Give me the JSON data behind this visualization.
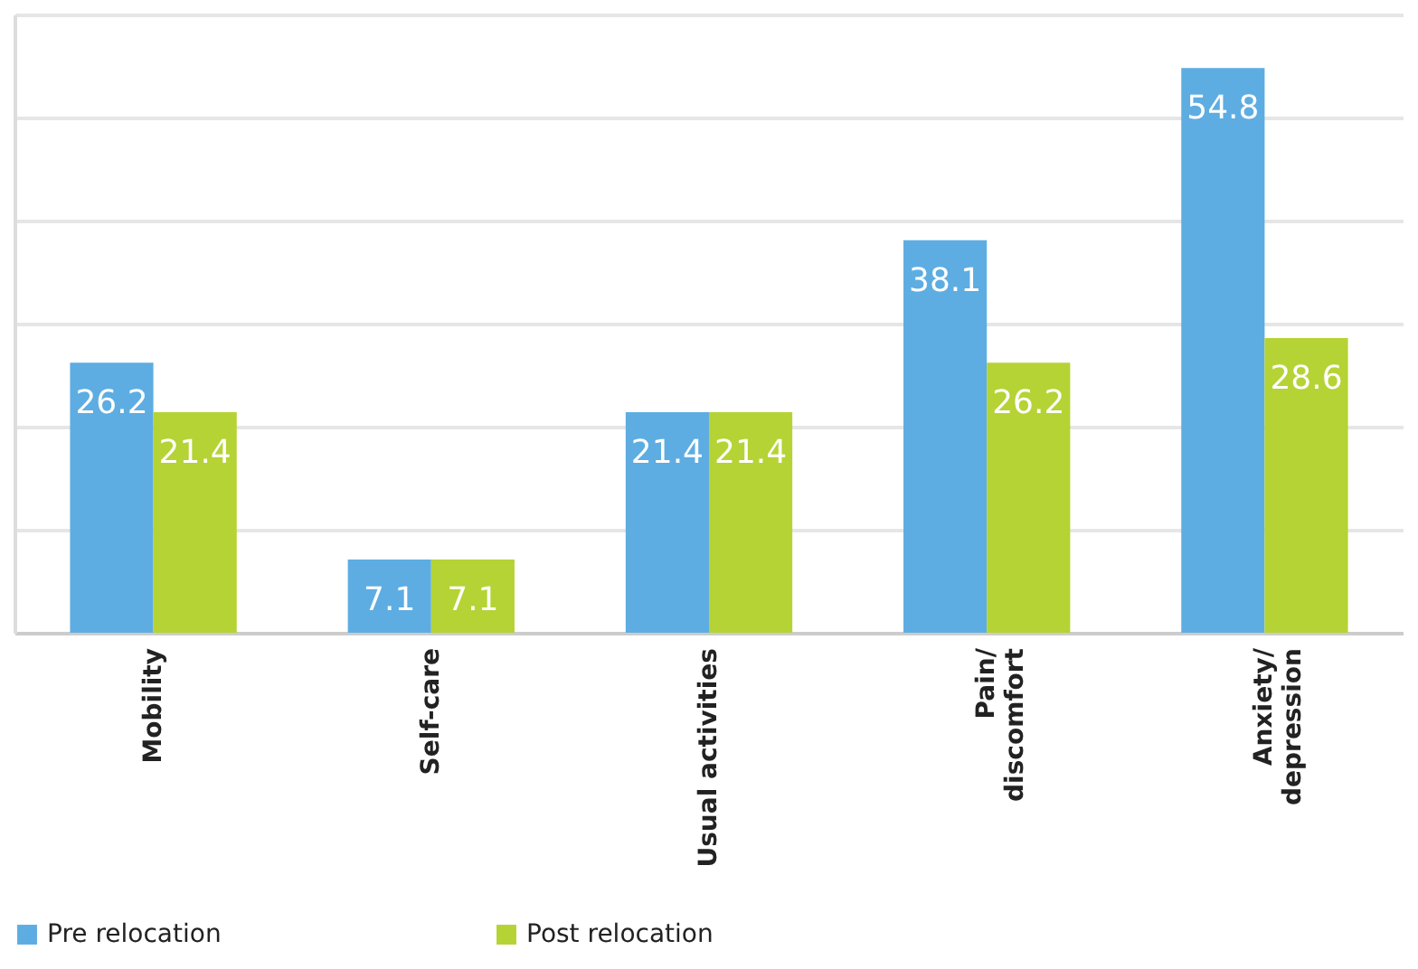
{
  "chart_data": {
    "type": "bar",
    "categories": [
      "Mobility",
      "Self-care",
      "Usual activities",
      "Pain/discomfort",
      "Anxiety/depression"
    ],
    "series": [
      {
        "name": "Pre relocation",
        "color": "#5dade2",
        "values": [
          26.2,
          7.1,
          21.4,
          38.1,
          54.8
        ]
      },
      {
        "name": "Post relocation",
        "color": "#b5d334",
        "values": [
          21.4,
          7.1,
          21.4,
          26.2,
          28.6
        ]
      }
    ],
    "ylim": [
      0,
      60
    ],
    "yticks": [
      {
        "value": 0,
        "label": null
      },
      {
        "value": 10,
        "label": null
      },
      {
        "value": 20,
        "label": null
      },
      {
        "value": 30,
        "label": null
      },
      {
        "value": 40,
        "label": null
      },
      {
        "value": 50,
        "label": null
      },
      {
        "value": 60,
        "label": null
      }
    ],
    "grid": "y",
    "tick_labels": "x",
    "legend": "bottom left",
    "data_labels": true
  }
}
